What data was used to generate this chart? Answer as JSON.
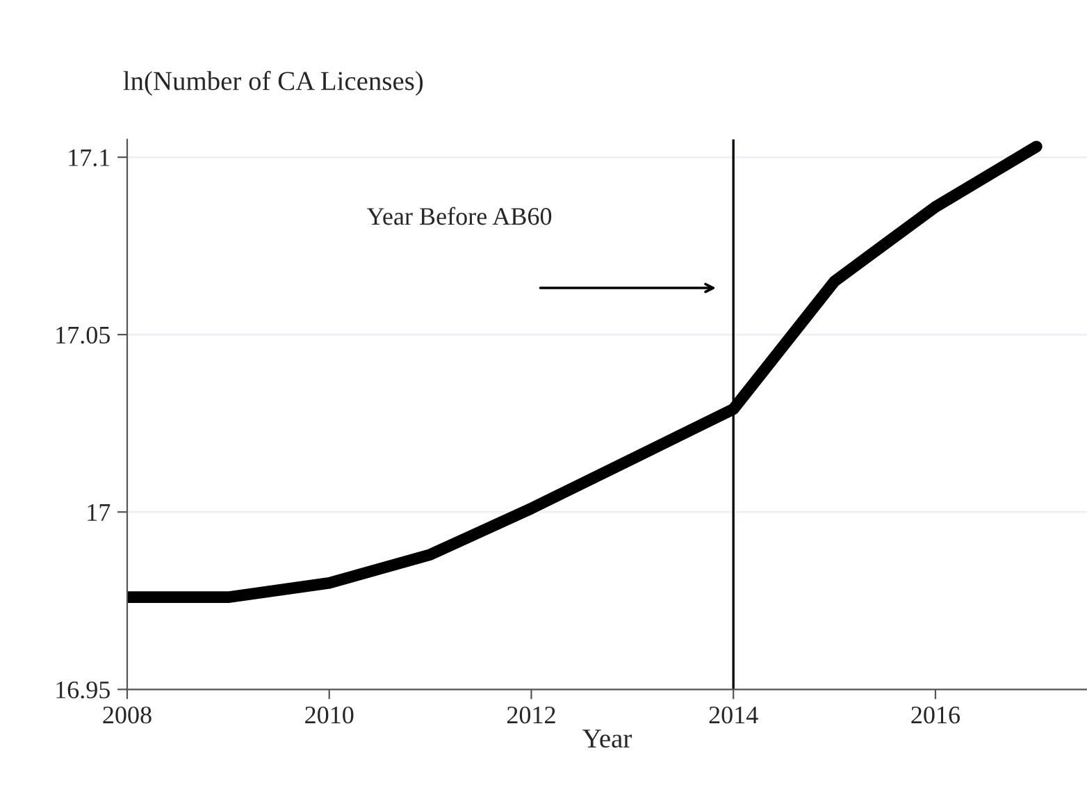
{
  "chart_data": {
    "type": "line",
    "xlabel": "Year",
    "ylabel": "ln(Number of CA Licenses)",
    "x": [
      2008,
      2009,
      2010,
      2011,
      2012,
      2013,
      2014,
      2015,
      2016,
      2017
    ],
    "series": [
      {
        "color": "#000000",
        "values": [
          16.976,
          16.976,
          16.98,
          16.988,
          17.001,
          17.015,
          17.029,
          17.065,
          17.086,
          17.103
        ]
      }
    ],
    "xlim": [
      2008,
      2017.5
    ],
    "xticks": [
      2008,
      2010,
      2012,
      2014,
      2016
    ],
    "ylim": [
      16.95,
      17.105
    ],
    "yticks": [
      16.95,
      17,
      17.05,
      17.1
    ],
    "ref_lines": [
      {
        "axis": "x",
        "value": 2014,
        "label": "Year Before AB60",
        "color": "#000000"
      }
    ],
    "grid": "y",
    "legend": false,
    "marker": "none",
    "line_style": "solid"
  }
}
